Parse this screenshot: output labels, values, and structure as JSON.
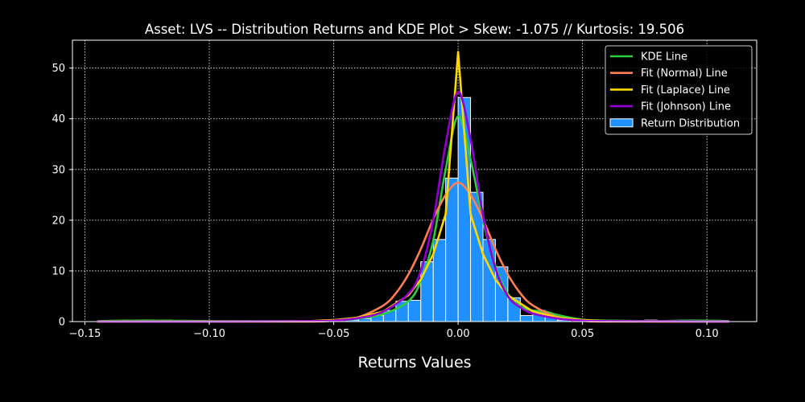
{
  "chart_data": {
    "type": "bar",
    "title": "Asset: LVS -- Distribution Returns and KDE Plot > Skew: -1.075 // Kurtosis: 19.506",
    "xlabel": "Returns Values",
    "ylabel": "",
    "xlim": [
      -0.155,
      0.12
    ],
    "ylim": [
      0,
      55.5
    ],
    "x_ticks": [
      -0.15,
      -0.1,
      -0.05,
      0.0,
      0.05,
      0.1
    ],
    "x_tick_labels": [
      "−0.15",
      "−0.10",
      "−0.05",
      "0.00",
      "0.05",
      "0.10"
    ],
    "y_ticks": [
      0,
      10,
      20,
      30,
      40,
      50
    ],
    "y_tick_labels": [
      "0",
      "10",
      "20",
      "30",
      "40",
      "50"
    ],
    "grid": true,
    "legend_position": "top-right",
    "legend": [
      "KDE Line",
      "Fit (Normal) Line",
      "Fit (Laplace) Line",
      "Fit (Johnson) Line",
      "Return Distribution"
    ],
    "histogram": {
      "name": "Return Distribution",
      "color": "#1E90FF",
      "edge_color": "#FFFFFF",
      "bin_width": 0.005,
      "bins": [
        {
          "x": -0.1325,
          "count": 0.3
        },
        {
          "x": -0.1175,
          "count": 0.3
        },
        {
          "x": -0.0425,
          "count": 0.3
        },
        {
          "x": -0.0375,
          "count": 0.6
        },
        {
          "x": -0.0325,
          "count": 1.2
        },
        {
          "x": -0.0275,
          "count": 2.2
        },
        {
          "x": -0.0225,
          "count": 4.0
        },
        {
          "x": -0.0175,
          "count": 4.2
        },
        {
          "x": -0.0125,
          "count": 11.8
        },
        {
          "x": -0.0075,
          "count": 16.2
        },
        {
          "x": -0.0025,
          "count": 28.3
        },
        {
          "x": 0.0025,
          "count": 44.2
        },
        {
          "x": 0.0075,
          "count": 25.5
        },
        {
          "x": 0.0125,
          "count": 16.2
        },
        {
          "x": 0.0175,
          "count": 10.8
        },
        {
          "x": 0.0225,
          "count": 4.7
        },
        {
          "x": 0.0275,
          "count": 1.2
        },
        {
          "x": 0.0325,
          "count": 2.2
        },
        {
          "x": 0.0375,
          "count": 1.0
        },
        {
          "x": 0.0425,
          "count": 0.3
        },
        {
          "x": 0.0775,
          "count": 0.3
        },
        {
          "x": 0.0925,
          "count": 0.3
        }
      ]
    },
    "series": [
      {
        "name": "KDE Line",
        "color": "#2ECC40",
        "x": [
          -0.145,
          -0.13,
          -0.12,
          -0.1,
          -0.08,
          -0.06,
          -0.05,
          -0.04,
          -0.03,
          -0.02,
          -0.015,
          -0.01,
          -0.005,
          0.0,
          0.005,
          0.01,
          0.015,
          0.02,
          0.025,
          0.03,
          0.035,
          0.04,
          0.05,
          0.06,
          0.08,
          0.09,
          0.1,
          0.109
        ],
        "y": [
          0.1,
          0.2,
          0.2,
          0.1,
          0.1,
          0.1,
          0.2,
          0.6,
          1.5,
          4.0,
          8.0,
          16.0,
          30.0,
          40.5,
          32.0,
          20.0,
          11.0,
          5.5,
          3.0,
          2.2,
          2.0,
          1.3,
          0.4,
          0.2,
          0.1,
          0.2,
          0.2,
          0.1
        ]
      },
      {
        "name": "Fit (Normal) Line",
        "color": "#FF7F50",
        "x": [
          -0.145,
          -0.1,
          -0.06,
          -0.05,
          -0.04,
          -0.03,
          -0.025,
          -0.02,
          -0.015,
          -0.01,
          -0.005,
          0.0,
          0.005,
          0.01,
          0.015,
          0.02,
          0.025,
          0.03,
          0.04,
          0.05,
          0.06,
          0.109
        ],
        "y": [
          0.0,
          0.0,
          0.0,
          0.2,
          0.9,
          3.2,
          5.6,
          9.3,
          14.3,
          20.2,
          25.0,
          27.4,
          25.0,
          20.2,
          14.3,
          9.3,
          5.6,
          3.2,
          0.9,
          0.2,
          0.0,
          0.0
        ]
      },
      {
        "name": "Fit (Laplace) Line",
        "color": "#FFD700",
        "x": [
          -0.145,
          -0.1,
          -0.06,
          -0.05,
          -0.04,
          -0.03,
          -0.02,
          -0.015,
          -0.01,
          -0.005,
          0.0,
          0.005,
          0.01,
          0.015,
          0.02,
          0.03,
          0.04,
          0.05,
          0.06,
          0.109
        ],
        "y": [
          0.0,
          0.0,
          0.1,
          0.3,
          0.8,
          2.0,
          5.2,
          8.3,
          13.3,
          21.2,
          53.2,
          21.2,
          13.3,
          8.3,
          5.2,
          2.0,
          0.8,
          0.3,
          0.1,
          0.0
        ]
      },
      {
        "name": "Fit (Johnson) Line",
        "color": "#9400D3",
        "x": [
          -0.145,
          -0.1,
          -0.06,
          -0.05,
          -0.04,
          -0.03,
          -0.02,
          -0.015,
          -0.01,
          -0.005,
          0.0,
          0.005,
          0.01,
          0.015,
          0.02,
          0.025,
          0.03,
          0.04,
          0.05,
          0.06,
          0.109
        ],
        "y": [
          0.0,
          0.0,
          0.1,
          0.2,
          0.7,
          2.0,
          5.5,
          10.0,
          20.0,
          35.0,
          45.3,
          36.0,
          21.0,
          10.5,
          5.0,
          2.8,
          1.6,
          0.6,
          0.2,
          0.1,
          0.0
        ]
      }
    ]
  }
}
